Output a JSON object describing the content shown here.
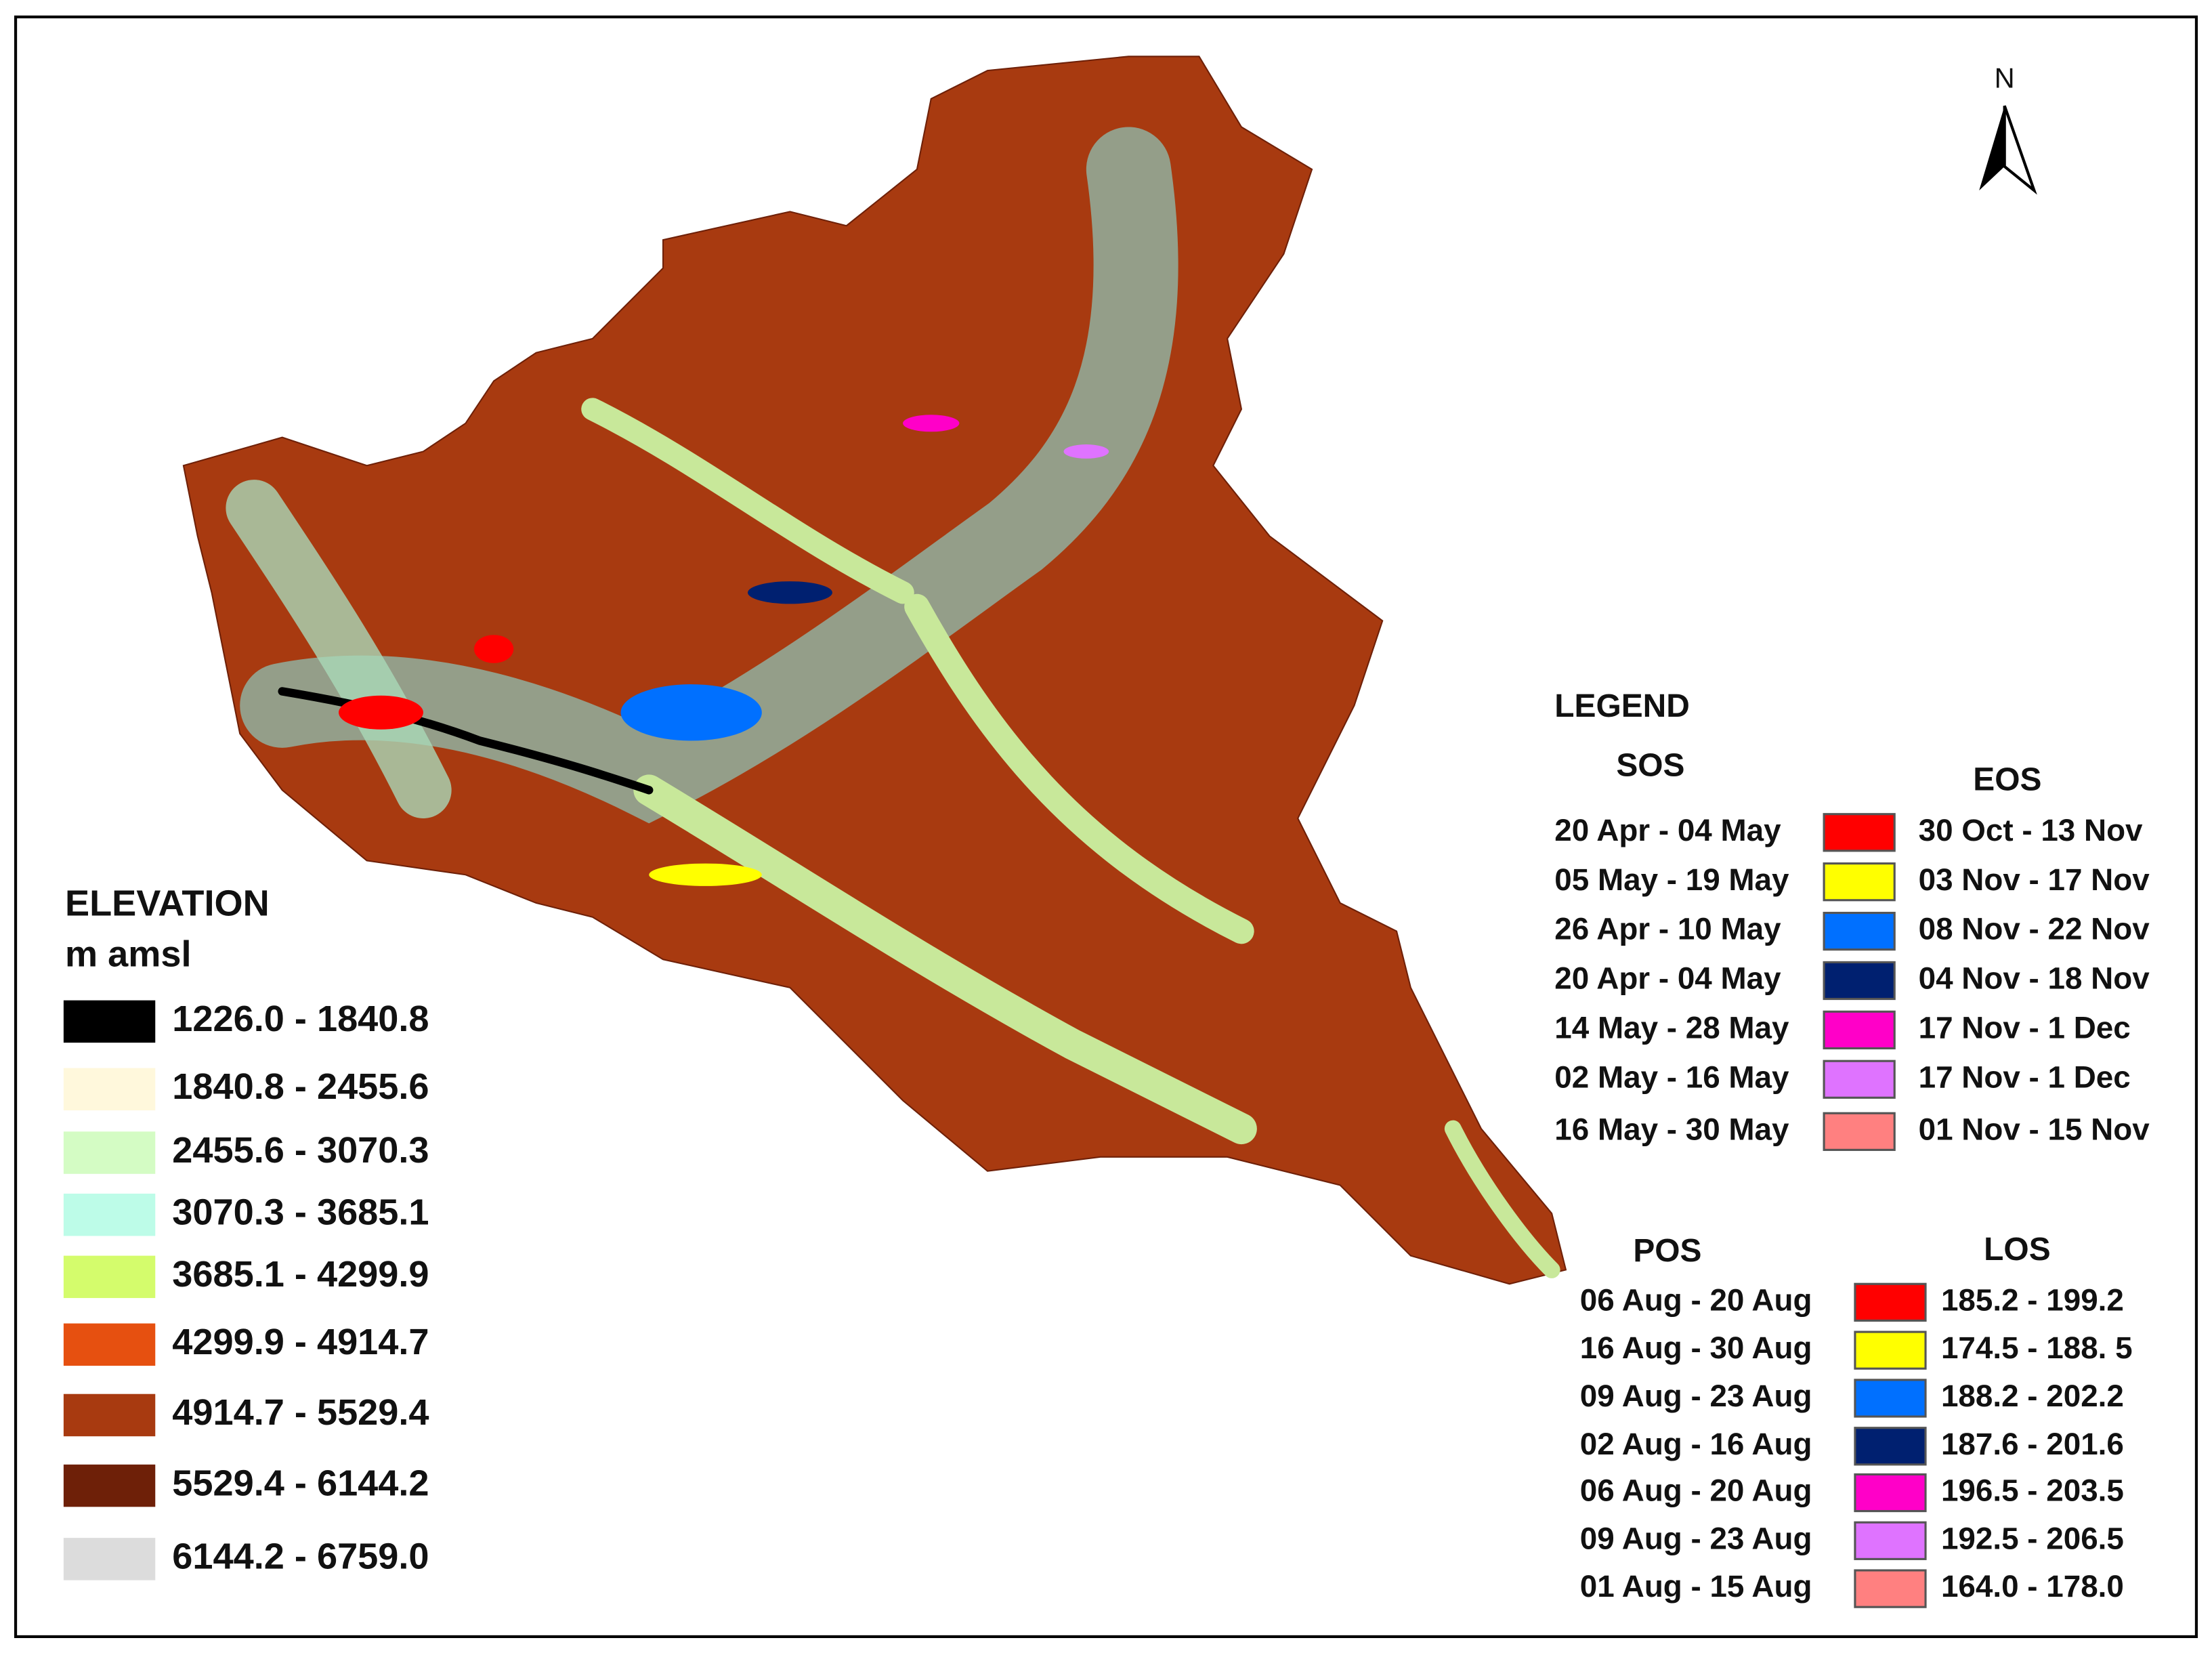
{
  "north_arrow": {
    "label": "N"
  },
  "elevation_legend": {
    "title": "ELEVATION",
    "unit": "m amsl",
    "classes": [
      {
        "label": "1226.0 - 1840.8",
        "color": "#000000"
      },
      {
        "label": "1840.8 - 2455.6",
        "color": "#fff8dc"
      },
      {
        "label": "2455.6 - 3070.3",
        "color": "#d4fcc4"
      },
      {
        "label": "3070.3 - 3685.1",
        "color": "#bdfce8"
      },
      {
        "label": "3685.1 - 4299.9",
        "color": "#d4fc6c"
      },
      {
        "label": "4299.9 - 4914.7",
        "color": "#e65010"
      },
      {
        "label": "4914.7 - 5529.4",
        "color": "#a83a10"
      },
      {
        "label": "5529.4 - 6144.2",
        "color": "#6e2008"
      },
      {
        "label": "6144.2 - 6759.0",
        "color": "#dcdcdc"
      }
    ]
  },
  "phenology_legend": {
    "title": "LEGEND",
    "sos_eos": {
      "left_header": "SOS",
      "right_header": "EOS",
      "rows": [
        {
          "left": "20 Apr - 04 May",
          "right": "30 Oct - 13 Nov",
          "color": "#ff0000"
        },
        {
          "left": "05 May - 19 May",
          "right": "03 Nov - 17 Nov",
          "color": "#ffff00"
        },
        {
          "left": "26 Apr - 10 May",
          "right": "08 Nov - 22 Nov",
          "color": "#0070ff"
        },
        {
          "left": "20 Apr - 04 May",
          "right": "04 Nov - 18 Nov",
          "color": "#002070"
        },
        {
          "left": "14 May - 28 May",
          "right": "17 Nov - 1 Dec",
          "color": "#ff00c8"
        },
        {
          "left": "02 May - 16 May",
          "right": "17 Nov - 1 Dec",
          "color": "#df73ff"
        },
        {
          "left": "16 May - 30 May",
          "right": "01 Nov - 15 Nov",
          "color": "#ff8080"
        }
      ]
    },
    "pos_los": {
      "left_header": "POS",
      "right_header": "LOS",
      "rows": [
        {
          "left": "06 Aug - 20 Aug",
          "right": "185.2 - 199.2",
          "color": "#ff0000"
        },
        {
          "left": "16 Aug - 30 Aug",
          "right": "174.5 - 188. 5",
          "color": "#ffff00"
        },
        {
          "left": "09 Aug - 23 Aug",
          "right": "188.2 - 202.2",
          "color": "#0070ff"
        },
        {
          "left": "02 Aug - 16 Aug",
          "right": "187.6 - 201.6",
          "color": "#002070"
        },
        {
          "left": "06 Aug - 20 Aug",
          "right": "196.5 - 203.5",
          "color": "#ff00c8"
        },
        {
          "left": "09 Aug - 23 Aug",
          "right": "192.5 - 206.5",
          "color": "#df73ff"
        },
        {
          "left": "01 Aug - 15 Aug",
          "right": "164.0 - 178.0",
          "color": "#ff8080"
        }
      ]
    }
  }
}
